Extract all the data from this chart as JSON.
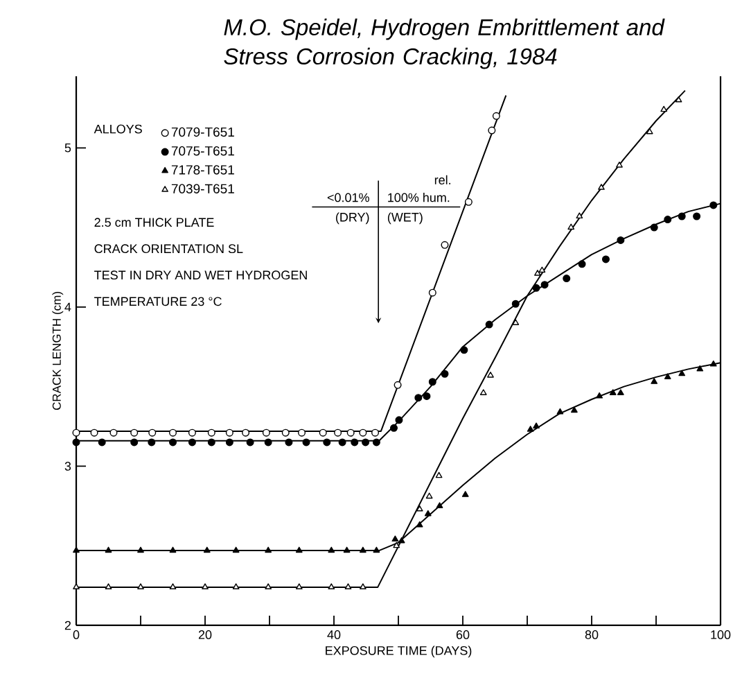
{
  "chart_data": {
    "type": "scatter",
    "title": "M.O. Speidel, Hydrogen Embrittlement and Stress Corrosion Cracking, 1984",
    "xlabel": "EXPOSURE TIME (DAYS)",
    "ylabel": "CRACK LENGTH (cm)",
    "legend_title": "ALLOYS",
    "annotations": [
      "2.5 cm THICK PLATE",
      "CRACK ORIENTATION SL",
      "TEST IN DRY AND WET HYDROGEN",
      "TEMPERATURE 23 °C",
      "<0.01%",
      "rel.",
      "100% hum.",
      "(DRY)",
      "(WET)"
    ],
    "xlim": [
      0,
      100
    ],
    "ylim": [
      2,
      5.45
    ],
    "xticks": [
      0,
      {
        "value": 10,
        "label": null
      },
      20,
      {
        "value": 30,
        "label": null
      },
      40,
      {
        "value": 50,
        "label": null
      },
      60,
      {
        "value": 70,
        "label": null
      },
      80,
      {
        "value": 90,
        "label": null
      },
      100
    ],
    "yticks": [
      2,
      3,
      4,
      5
    ],
    "grid": false,
    "legend": "top left",
    "series": [
      {
        "name": "7079-T651",
        "type": "scatter",
        "marker": "circle",
        "color": "#ffffff",
        "x": [
          0,
          2.8,
          5.8,
          9,
          11.8,
          15,
          18,
          21,
          23.8,
          26.3,
          29.5,
          32.5,
          35,
          38.3,
          40.6,
          42.6,
          44.5,
          46.4,
          49.9,
          55.3,
          57.2,
          60.9,
          64.5,
          65.2
        ],
        "values": [
          3.21,
          3.21,
          3.21,
          3.21,
          3.21,
          3.21,
          3.21,
          3.21,
          3.21,
          3.21,
          3.21,
          3.21,
          3.21,
          3.21,
          3.21,
          3.21,
          3.21,
          3.21,
          3.51,
          4.09,
          4.39,
          4.66,
          5.11,
          5.2
        ]
      },
      {
        "name": "7075-T651",
        "type": "scatter",
        "marker": "circle",
        "color": "#000000",
        "x": [
          0,
          4,
          9,
          11.7,
          15,
          18,
          21,
          23.8,
          27,
          29.8,
          33,
          35.7,
          38.9,
          41.3,
          43.2,
          44.9,
          46.6,
          49.3,
          50.1,
          53.1,
          54.4,
          55.3,
          57.2,
          60.2,
          64.1,
          68.2,
          71.4,
          72.7,
          76.1,
          78.5,
          82.2,
          84.5,
          89.7,
          91.8,
          94,
          96.3,
          98.9
        ],
        "values": [
          3.15,
          3.15,
          3.15,
          3.15,
          3.15,
          3.15,
          3.15,
          3.15,
          3.15,
          3.15,
          3.15,
          3.15,
          3.15,
          3.15,
          3.15,
          3.15,
          3.15,
          3.24,
          3.29,
          3.43,
          3.44,
          3.53,
          3.58,
          3.73,
          3.89,
          4.02,
          4.12,
          4.14,
          4.18,
          4.27,
          4.3,
          4.42,
          4.5,
          4.55,
          4.57,
          4.57,
          4.64
        ]
      },
      {
        "name": "7178-T651",
        "type": "scatter",
        "marker": "triangle",
        "color": "#000000",
        "x": [
          0,
          5,
          10,
          15,
          20.3,
          24.8,
          29.8,
          34.6,
          39.6,
          42,
          44.5,
          46.6,
          49.5,
          50.5,
          53.3,
          54.6,
          56.4,
          60.4,
          70.5,
          71.4,
          75.1,
          77.3,
          81.2,
          83.3,
          84.5,
          89.7,
          91.8,
          94,
          96.8,
          98.9
        ],
        "values": [
          2.47,
          2.47,
          2.47,
          2.47,
          2.47,
          2.47,
          2.47,
          2.47,
          2.47,
          2.47,
          2.47,
          2.47,
          2.54,
          2.53,
          2.63,
          2.7,
          2.75,
          2.82,
          3.23,
          3.25,
          3.34,
          3.35,
          3.44,
          3.46,
          3.46,
          3.53,
          3.56,
          3.58,
          3.61,
          3.64
        ]
      },
      {
        "name": "7039-T651",
        "type": "scatter",
        "marker": "triangle",
        "color": "#ffffff",
        "x": [
          0,
          5,
          10,
          15,
          20,
          24.8,
          29.8,
          34.6,
          39.6,
          42.2,
          44.5,
          49.7,
          53.3,
          54.8,
          56.3,
          63.2,
          64.3,
          68.2,
          71.6,
          72.3,
          76.8,
          78.1,
          81.5,
          84.3,
          89,
          91.2,
          93.5
        ],
        "values": [
          2.24,
          2.24,
          2.24,
          2.24,
          2.24,
          2.24,
          2.24,
          2.24,
          2.24,
          2.24,
          2.24,
          2.5,
          2.73,
          2.81,
          2.94,
          3.46,
          3.57,
          3.9,
          4.21,
          4.23,
          4.5,
          4.57,
          4.75,
          4.89,
          5.1,
          5.24,
          5.3
        ]
      },
      {
        "type": "line",
        "color": "#000000",
        "x": [
          0,
          47.3,
          66.7
        ],
        "values": [
          3.22,
          3.22,
          5.33
        ]
      },
      {
        "type": "line",
        "color": "#000000",
        "x": [
          0,
          47,
          50,
          55,
          60,
          65,
          70,
          75,
          80,
          85,
          90,
          95,
          100
        ],
        "values": [
          3.16,
          3.16,
          3.28,
          3.5,
          3.75,
          3.92,
          4.07,
          4.2,
          4.33,
          4.43,
          4.52,
          4.6,
          4.65
        ]
      },
      {
        "type": "line",
        "color": "#000000",
        "x": [
          0,
          47,
          50,
          55,
          60,
          65,
          70,
          75,
          80,
          85,
          90,
          95,
          100
        ],
        "values": [
          2.47,
          2.47,
          2.52,
          2.7,
          2.88,
          3.05,
          3.2,
          3.33,
          3.42,
          3.5,
          3.56,
          3.61,
          3.65
        ]
      },
      {
        "type": "line",
        "color": "#000000",
        "x": [
          0,
          46.8,
          60,
          65,
          70,
          75,
          80,
          85,
          90,
          94.5
        ],
        "values": [
          2.24,
          2.24,
          3.3,
          3.68,
          4.07,
          4.38,
          4.67,
          4.93,
          5.17,
          5.36
        ]
      }
    ]
  }
}
